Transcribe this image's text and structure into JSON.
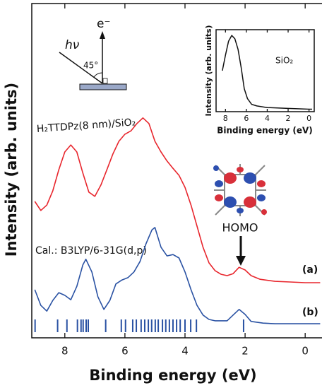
{
  "chart_data": [
    {
      "type": "line",
      "x_label": "Binding energy (eV)",
      "y_label": "Intensity (arb. units)",
      "xlim": [
        9.1,
        -0.56
      ],
      "xticks": [
        8,
        6,
        4,
        2,
        0
      ],
      "ylim": [
        0,
        100
      ],
      "series": [
        {
          "name": "H₂TTDPz(8 nm)/SiO₂",
          "tag": "(a)",
          "color": "#e8262d",
          "x": [
            9.0,
            8.8,
            8.6,
            8.4,
            8.2,
            8.0,
            7.8,
            7.6,
            7.4,
            7.2,
            7.0,
            6.8,
            6.6,
            6.4,
            6.2,
            6.0,
            5.8,
            5.6,
            5.4,
            5.2,
            5.0,
            4.8,
            4.6,
            4.4,
            4.2,
            4.0,
            3.8,
            3.6,
            3.4,
            3.2,
            3.0,
            2.8,
            2.6,
            2.4,
            2.2,
            2.0,
            1.8,
            1.5,
            1.0,
            0.5,
            0.0,
            -0.5
          ],
          "values": [
            40.8,
            38.1,
            39.7,
            44.0,
            50.3,
            55.6,
            57.7,
            55.6,
            49.3,
            43.6,
            42.3,
            45.7,
            50.3,
            55.0,
            58.8,
            60.9,
            61.9,
            64.1,
            65.8,
            64.1,
            58.8,
            55.6,
            52.9,
            50.7,
            48.6,
            45.0,
            39.7,
            33.4,
            27.1,
            22.4,
            20.1,
            19.0,
            18.6,
            19.2,
            21.1,
            20.3,
            18.6,
            17.5,
            16.9,
            16.7,
            16.5,
            16.5
          ]
        },
        {
          "name": "Cal.: B3LYP/6-31G(d,p)",
          "tag": "(b)",
          "color": "#2a52a3",
          "x": [
            9.0,
            8.8,
            8.6,
            8.4,
            8.2,
            8.0,
            7.8,
            7.6,
            7.4,
            7.3,
            7.1,
            6.9,
            6.7,
            6.5,
            6.3,
            6.1,
            5.9,
            5.7,
            5.5,
            5.3,
            5.1,
            5.0,
            4.8,
            4.6,
            4.4,
            4.2,
            4.0,
            3.8,
            3.6,
            3.4,
            3.2,
            3.0,
            2.6,
            2.4,
            2.2,
            2.0,
            1.8,
            1.4,
            1.0,
            0.0,
            -0.5
          ],
          "values": [
            14.4,
            9.7,
            8.0,
            11.2,
            13.5,
            12.7,
            11.4,
            15.4,
            21.8,
            23.5,
            19.7,
            12.3,
            8.5,
            11.2,
            16.1,
            17.3,
            18.0,
            19.7,
            22.8,
            28.1,
            32.3,
            33.0,
            27.1,
            24.5,
            24.9,
            23.9,
            19.7,
            14.4,
            9.7,
            6.8,
            5.5,
            5.1,
            5.1,
            6.8,
            8.5,
            7.0,
            4.9,
            4.4,
            4.2,
            4.2,
            4.2
          ]
        }
      ],
      "sticks": {
        "color": "#2a52a3",
        "x": [
          8.99,
          8.24,
          7.93,
          7.58,
          7.46,
          7.39,
          7.29,
          7.22,
          6.64,
          6.12,
          5.98,
          5.74,
          5.62,
          5.46,
          5.34,
          5.22,
          5.11,
          4.99,
          4.89,
          4.75,
          4.64,
          4.52,
          4.4,
          4.28,
          4.16,
          4.0,
          3.81,
          3.62,
          2.05
        ]
      },
      "annotations": {
        "homo": "HOMO",
        "photon": "hν",
        "electron": "e⁻",
        "angle": "45°"
      }
    },
    {
      "type": "line",
      "x_label": "Binding energy (eV)",
      "y_label": "Intensity (arb. units)",
      "xlim": [
        8.9,
        -0.5
      ],
      "xticks": [
        8,
        6,
        4,
        2,
        0
      ],
      "ylim": [
        0,
        100
      ],
      "series": [
        {
          "name": "SiO₂",
          "color": "#111111",
          "x": [
            8.3,
            8.0,
            7.7,
            7.4,
            7.1,
            6.8,
            6.5,
            6.2,
            5.9,
            5.5,
            5.0,
            4.0,
            2.0,
            0.0,
            -0.3
          ],
          "values": [
            50,
            69,
            86,
            93,
            89,
            76,
            54,
            28,
            16,
            9,
            7,
            5,
            4,
            3,
            3
          ]
        }
      ]
    }
  ]
}
